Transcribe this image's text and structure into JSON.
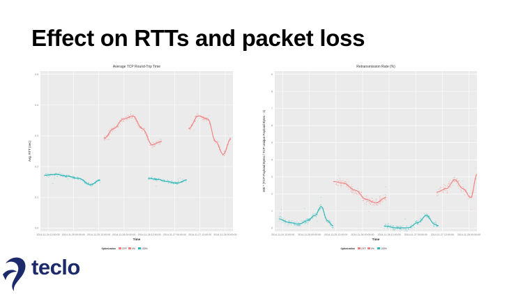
{
  "slide": {
    "title": "Effect on RTTs and packet loss"
  },
  "logo": {
    "text": "teclo"
  },
  "colors": {
    "off": "#f08080",
    "on": "#2ab7b7",
    "panel": "#ebebeb",
    "grid": "#ffffff",
    "logo": "#1c2a6b"
  },
  "chart_data": [
    {
      "type": "scatter",
      "title": "Average TCP Round-Trip Time",
      "xlabel": "Time",
      "ylabel": "Avg. RTT (sec)",
      "ylim": [
        0,
        0.5
      ],
      "yticks": [
        "0.5",
        "0.4",
        "0.3",
        "0.2",
        "0.1",
        "0.0"
      ],
      "xticks": [
        "2014-11-24 12:00:00",
        "2014-11-25 00:00:00",
        "2014-11-25 12:00:00",
        "2014-11-26 00:00:00",
        "2014-11-26 12:00:00",
        "2014-11-27 00:00:00",
        "2014-11-27 12:00:00",
        "2014-11-28 00:00:00"
      ],
      "legend": {
        "title": "Optimization",
        "position": "bottom",
        "entries": [
          "OFF",
          "0%",
          "100%"
        ]
      },
      "grid": true,
      "segments": [
        {
          "series": "off",
          "x": [
            0.33,
            0.38,
            0.43,
            0.48,
            0.53,
            0.58,
            0.63
          ],
          "y": [
            0.29,
            0.32,
            0.35,
            0.36,
            0.32,
            0.27,
            0.28
          ]
        },
        {
          "series": "on",
          "x": [
            0.02,
            0.08,
            0.14,
            0.2,
            0.26,
            0.31
          ],
          "y": [
            0.175,
            0.178,
            0.172,
            0.165,
            0.145,
            0.16
          ]
        },
        {
          "series": "off",
          "x": [
            0.77,
            0.82,
            0.87,
            0.91,
            0.95,
            0.99
          ],
          "y": [
            0.32,
            0.36,
            0.35,
            0.28,
            0.24,
            0.29
          ]
        },
        {
          "series": "on",
          "x": [
            0.56,
            0.61,
            0.66,
            0.71,
            0.76
          ],
          "y": [
            0.165,
            0.162,
            0.155,
            0.15,
            0.16
          ]
        }
      ]
    },
    {
      "type": "scatter",
      "title": "Retransmission Rate (%)",
      "xlabel": "Time",
      "ylabel": "100 * (TCP Payload Bytes / TCP Unique Payload Bytes - 1)",
      "ylim": [
        0,
        9
      ],
      "yticks": [
        "9",
        "8",
        "7",
        "6",
        "5",
        "4",
        "3",
        "2",
        "1",
        "0"
      ],
      "xticks": [
        "2014-11-24 12:00:00",
        "2014-11-25 00:00:00",
        "2014-11-25 12:00:00",
        "2014-11-26 00:00:00",
        "2014-11-26 12:00:00",
        "2014-11-27 00:00:00",
        "2014-11-27 12:00:00",
        "2014-11-28 00:00:00"
      ],
      "legend": {
        "title": "Optimization",
        "position": "bottom",
        "entries": [
          "OFF",
          "0%",
          "100%"
        ]
      },
      "grid": true,
      "segments": [
        {
          "series": "on",
          "x": [
            0.02,
            0.07,
            0.12,
            0.16,
            0.2,
            0.23,
            0.26,
            0.29
          ],
          "y": [
            0.7,
            0.5,
            0.4,
            0.6,
            0.9,
            1.4,
            0.6,
            0.3
          ]
        },
        {
          "series": "off",
          "x": [
            0.29,
            0.34,
            0.4,
            0.45,
            0.5,
            0.55
          ],
          "y": [
            2.8,
            2.7,
            2.3,
            1.8,
            1.6,
            1.9
          ]
        },
        {
          "series": "on",
          "x": [
            0.54,
            0.6,
            0.66,
            0.71,
            0.75,
            0.79,
            0.81
          ],
          "y": [
            0.3,
            0.2,
            0.2,
            0.5,
            0.9,
            0.4,
            0.3
          ]
        },
        {
          "series": "off",
          "x": [
            0.8,
            0.85,
            0.89,
            0.93,
            0.97,
            1.0
          ],
          "y": [
            2.2,
            2.4,
            2.9,
            2.4,
            1.9,
            3.2
          ]
        }
      ]
    }
  ]
}
